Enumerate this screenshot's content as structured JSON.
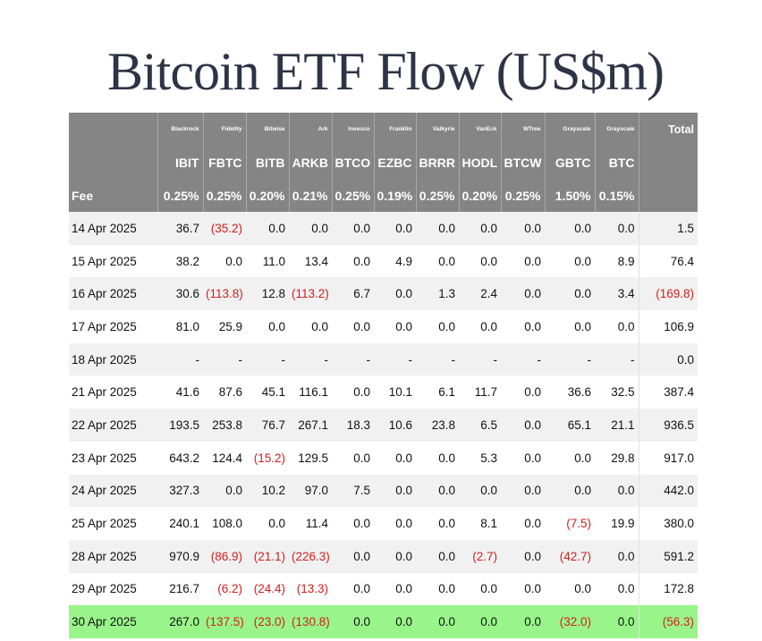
{
  "title": "Bitcoin ETF Flow (US$m)",
  "columns": [
    {
      "issuer": "Blackrock",
      "ticker": "IBIT",
      "fee": "0.25%"
    },
    {
      "issuer": "Fidelity",
      "ticker": "FBTC",
      "fee": "0.25%"
    },
    {
      "issuer": "Bitwise",
      "ticker": "BITB",
      "fee": "0.20%"
    },
    {
      "issuer": "Ark",
      "ticker": "ARKB",
      "fee": "0.21%"
    },
    {
      "issuer": "Invesco",
      "ticker": "BTCO",
      "fee": "0.25%"
    },
    {
      "issuer": "Franklin",
      "ticker": "EZBC",
      "fee": "0.19%"
    },
    {
      "issuer": "Valkyrie",
      "ticker": "BRRR",
      "fee": "0.25%"
    },
    {
      "issuer": "VanEck",
      "ticker": "HODL",
      "fee": "0.20%"
    },
    {
      "issuer": "WTree",
      "ticker": "BTCW",
      "fee": "0.25%"
    },
    {
      "issuer": "Grayscale",
      "ticker": "GBTC",
      "fee": "1.50%"
    },
    {
      "issuer": "Grayscale",
      "ticker": "BTC",
      "fee": "0.15%"
    }
  ],
  "total_label": "Total",
  "fee_label": "Fee",
  "rows": [
    {
      "date": "14 Apr 2025",
      "values": [
        "36.7",
        "(35.2)",
        "0.0",
        "0.0",
        "0.0",
        "0.0",
        "0.0",
        "0.0",
        "0.0",
        "0.0",
        "0.0"
      ],
      "total": "1.5"
    },
    {
      "date": "15 Apr 2025",
      "values": [
        "38.2",
        "0.0",
        "11.0",
        "13.4",
        "0.0",
        "4.9",
        "0.0",
        "0.0",
        "0.0",
        "0.0",
        "8.9"
      ],
      "total": "76.4"
    },
    {
      "date": "16 Apr 2025",
      "values": [
        "30.6",
        "(113.8)",
        "12.8",
        "(113.2)",
        "6.7",
        "0.0",
        "1.3",
        "2.4",
        "0.0",
        "0.0",
        "3.4"
      ],
      "total": "(169.8)"
    },
    {
      "date": "17 Apr 2025",
      "values": [
        "81.0",
        "25.9",
        "0.0",
        "0.0",
        "0.0",
        "0.0",
        "0.0",
        "0.0",
        "0.0",
        "0.0",
        "0.0"
      ],
      "total": "106.9"
    },
    {
      "date": "18 Apr 2025",
      "values": [
        "-",
        "-",
        "-",
        "-",
        "-",
        "-",
        "-",
        "-",
        "-",
        "-",
        "-"
      ],
      "total": "0.0"
    },
    {
      "date": "21 Apr 2025",
      "values": [
        "41.6",
        "87.6",
        "45.1",
        "116.1",
        "0.0",
        "10.1",
        "6.1",
        "11.7",
        "0.0",
        "36.6",
        "32.5"
      ],
      "total": "387.4"
    },
    {
      "date": "22 Apr 2025",
      "values": [
        "193.5",
        "253.8",
        "76.7",
        "267.1",
        "18.3",
        "10.6",
        "23.8",
        "6.5",
        "0.0",
        "65.1",
        "21.1"
      ],
      "total": "936.5"
    },
    {
      "date": "23 Apr 2025",
      "values": [
        "643.2",
        "124.4",
        "(15.2)",
        "129.5",
        "0.0",
        "0.0",
        "0.0",
        "5.3",
        "0.0",
        "0.0",
        "29.8"
      ],
      "total": "917.0"
    },
    {
      "date": "24 Apr 2025",
      "values": [
        "327.3",
        "0.0",
        "10.2",
        "97.0",
        "7.5",
        "0.0",
        "0.0",
        "0.0",
        "0.0",
        "0.0",
        "0.0"
      ],
      "total": "442.0"
    },
    {
      "date": "25 Apr 2025",
      "values": [
        "240.1",
        "108.0",
        "0.0",
        "11.4",
        "0.0",
        "0.0",
        "0.0",
        "8.1",
        "0.0",
        "(7.5)",
        "19.9"
      ],
      "total": "380.0"
    },
    {
      "date": "28 Apr 2025",
      "values": [
        "970.9",
        "(86.9)",
        "(21.1)",
        "(226.3)",
        "0.0",
        "0.0",
        "0.0",
        "(2.7)",
        "0.0",
        "(42.7)",
        "0.0"
      ],
      "total": "591.2"
    },
    {
      "date": "29 Apr 2025",
      "values": [
        "216.7",
        "(6.2)",
        "(24.4)",
        "(13.3)",
        "0.0",
        "0.0",
        "0.0",
        "0.0",
        "0.0",
        "0.0",
        "0.0"
      ],
      "total": "172.8"
    },
    {
      "date": "30 Apr 2025",
      "values": [
        "267.0",
        "(137.5)",
        "(23.0)",
        "(130.8)",
        "0.0",
        "0.0",
        "0.0",
        "0.0",
        "0.0",
        "(32.0)",
        "0.0"
      ],
      "total": "(56.3)",
      "highlighted": true
    }
  ],
  "colors": {
    "header_bg": "#858585",
    "negative": "#d31e1e",
    "highlight_row": "#99f58a",
    "title": "#2e3447"
  }
}
